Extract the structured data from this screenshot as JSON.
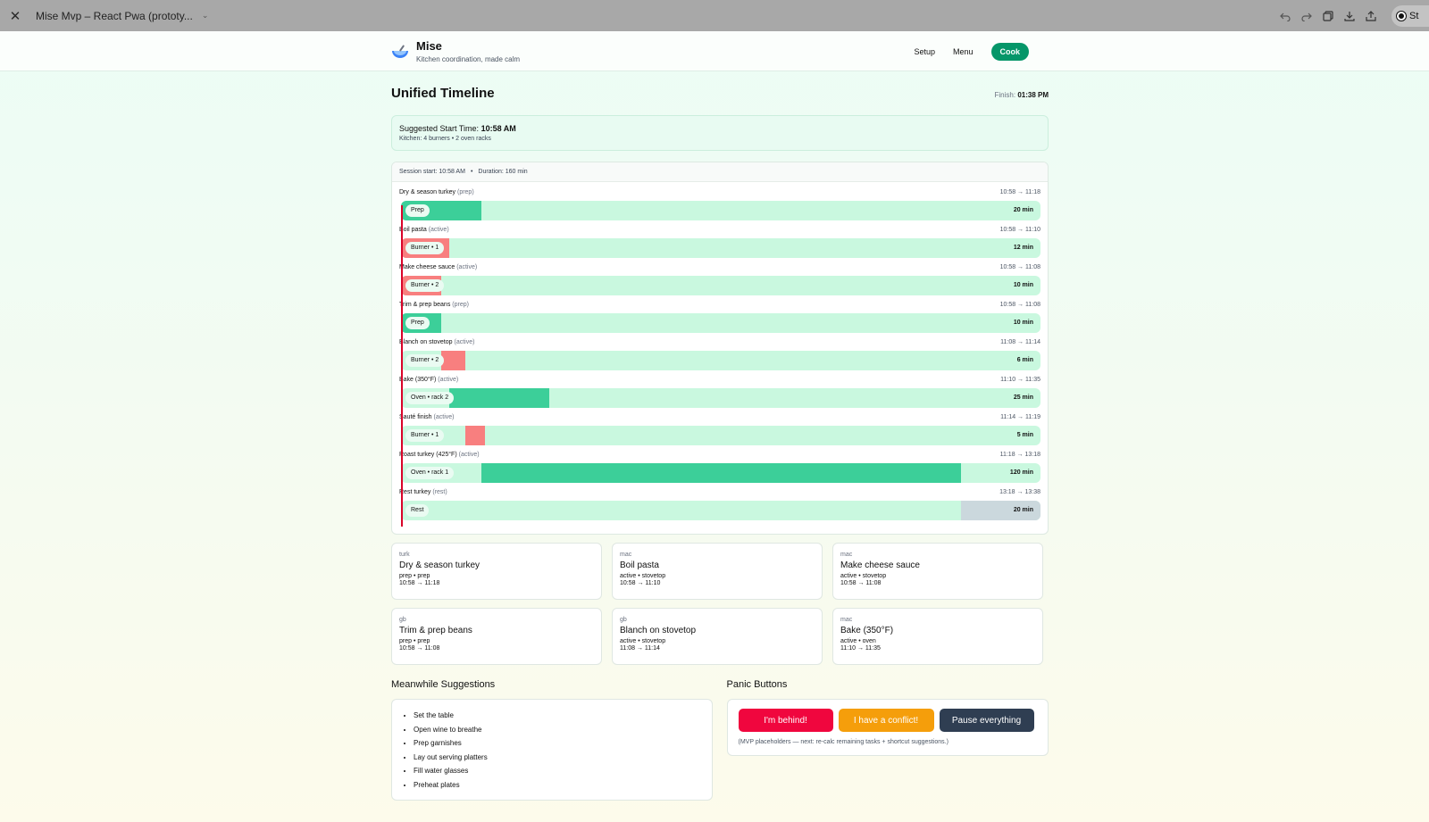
{
  "browser": {
    "tab_title": "Mise Mvp – React Pwa (prototy...",
    "close_glyph": "✕",
    "caret_glyph": "⌄",
    "pill_text": "St",
    "icons": [
      "undo-icon",
      "redo-icon",
      "duplicate-icon",
      "download-icon",
      "share-icon"
    ]
  },
  "header": {
    "app_name": "Mise",
    "tagline": "Kitchen coordination, made calm",
    "nav": {
      "setup": "Setup",
      "menu": "Menu",
      "cook": "Cook"
    }
  },
  "timeline_page": {
    "title": "Unified Timeline",
    "finish_label": "Finish:",
    "finish_time": "01:38 PM",
    "suggest_label": "Suggested Start Time:",
    "suggest_time": "10:58 AM",
    "kitchen": "Kitchen: 4 burners • 2 oven racks",
    "session_start": "Session start: 10:58 AM",
    "separator": "•",
    "duration": "Duration: 160 min",
    "session_total_min": 160
  },
  "colors": {
    "track": "#c9f8df",
    "prep": "#3ccf99",
    "burner": "#f87f7f",
    "oven": "#3ccf99",
    "rest": "#cbd8dd",
    "now_line": "#d90429"
  },
  "tasks": [
    {
      "label": "Dry & season turkey",
      "type": "(prep)",
      "range": "10:58 → 11:18",
      "chip": "Prep",
      "duration": "20 min",
      "start_min": 0,
      "length_min": 20,
      "kind": "prep"
    },
    {
      "label": "Boil pasta",
      "type": "(active)",
      "range": "10:58 → 11:10",
      "chip": "Burner • 1",
      "duration": "12 min",
      "start_min": 0,
      "length_min": 12,
      "kind": "burner"
    },
    {
      "label": "Make cheese sauce",
      "type": "(active)",
      "range": "10:58 → 11:08",
      "chip": "Burner • 2",
      "duration": "10 min",
      "start_min": 0,
      "length_min": 10,
      "kind": "burner"
    },
    {
      "label": "Trim & prep beans",
      "type": "(prep)",
      "range": "10:58 → 11:08",
      "chip": "Prep",
      "duration": "10 min",
      "start_min": 0,
      "length_min": 10,
      "kind": "prep"
    },
    {
      "label": "Blanch on stovetop",
      "type": "(active)",
      "range": "11:08 → 11:14",
      "chip": "Burner • 2",
      "duration": "6 min",
      "start_min": 10,
      "length_min": 6,
      "kind": "burner"
    },
    {
      "label": "Bake (350°F)",
      "type": "(active)",
      "range": "11:10 → 11:35",
      "chip": "Oven • rack 2",
      "duration": "25 min",
      "start_min": 12,
      "length_min": 25,
      "kind": "oven"
    },
    {
      "label": "Sauté finish",
      "type": "(active)",
      "range": "11:14 → 11:19",
      "chip": "Burner • 1",
      "duration": "5 min",
      "start_min": 16,
      "length_min": 5,
      "kind": "burner"
    },
    {
      "label": "Roast turkey (425°F)",
      "type": "(active)",
      "range": "11:18 → 13:18",
      "chip": "Oven • rack 1",
      "duration": "120 min",
      "start_min": 20,
      "length_min": 120,
      "kind": "oven"
    },
    {
      "label": "Rest turkey",
      "type": "(rest)",
      "range": "13:18 → 13:38",
      "chip": "Rest",
      "duration": "20 min",
      "start_min": 140,
      "length_min": 20,
      "kind": "rest"
    }
  ],
  "cards": [
    {
      "tag": "turk",
      "title": "Dry & season turkey",
      "meta": "prep • prep",
      "time": "10:58 → 11:18"
    },
    {
      "tag": "mac",
      "title": "Boil pasta",
      "meta": "active • stovetop",
      "time": "10:58 → 11:10"
    },
    {
      "tag": "mac",
      "title": "Make cheese sauce",
      "meta": "active • stovetop",
      "time": "10:58 → 11:08"
    },
    {
      "tag": "gb",
      "title": "Trim & prep beans",
      "meta": "prep • prep",
      "time": "10:58 → 11:08"
    },
    {
      "tag": "gb",
      "title": "Blanch on stovetop",
      "meta": "active • stovetop",
      "time": "11:08 → 11:14"
    },
    {
      "tag": "mac",
      "title": "Bake (350°F)",
      "meta": "active • oven",
      "time": "11:10 → 11:35"
    }
  ],
  "meanwhile": {
    "title": "Meanwhile Suggestions",
    "items": [
      "Set the table",
      "Open wine to breathe",
      "Prep garnishes",
      "Lay out serving platters",
      "Fill water glasses",
      "Preheat plates"
    ]
  },
  "panic": {
    "title": "Panic Buttons",
    "behind": "I'm behind!",
    "conflict": "I have a conflict!",
    "pause": "Pause everything",
    "behind_color": "#f0063e",
    "conflict_color": "#f59e0b",
    "pause_color": "#2f3e52",
    "note": "(MVP placeholders — next: re-calc remaining tasks + shortcut suggestions.)"
  }
}
